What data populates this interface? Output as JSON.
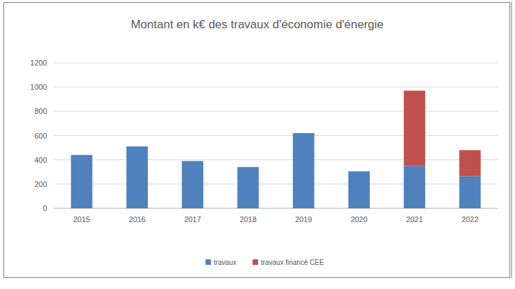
{
  "chart_data": {
    "type": "bar",
    "title": "Montant en k€ des travaux d'économie d'énergie",
    "categories": [
      "2015",
      "2016",
      "2017",
      "2018",
      "2019",
      "2020",
      "2021",
      "2022"
    ],
    "series": [
      {
        "name": "travaux",
        "color": "#4f81bd",
        "values": [
          440,
          510,
          390,
          340,
          620,
          305,
          350,
          265
        ]
      },
      {
        "name": "travaux financé CEE",
        "color": "#c0504d",
        "values": [
          0,
          0,
          0,
          0,
          0,
          0,
          620,
          215
        ]
      }
    ],
    "stacked": true,
    "ylim": [
      0,
      1200
    ],
    "yticks": [
      0,
      200,
      400,
      600,
      800,
      1000,
      1200
    ],
    "grid": true,
    "legend": "bottom"
  }
}
